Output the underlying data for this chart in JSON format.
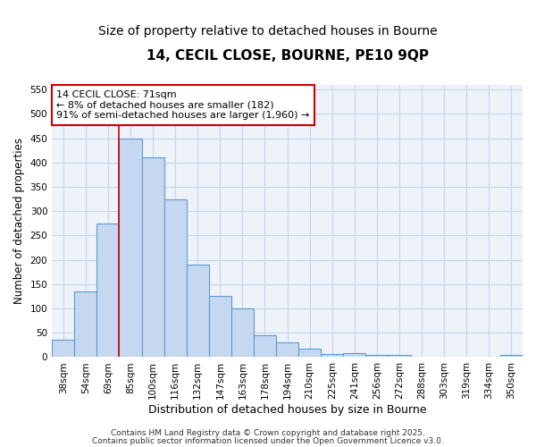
{
  "title": "14, CECIL CLOSE, BOURNE, PE10 9QP",
  "subtitle": "Size of property relative to detached houses in Bourne",
  "xlabel": "Distribution of detached houses by size in Bourne",
  "ylabel": "Number of detached properties",
  "categories": [
    "38sqm",
    "54sqm",
    "69sqm",
    "85sqm",
    "100sqm",
    "116sqm",
    "132sqm",
    "147sqm",
    "163sqm",
    "178sqm",
    "194sqm",
    "210sqm",
    "225sqm",
    "241sqm",
    "256sqm",
    "272sqm",
    "288sqm",
    "303sqm",
    "319sqm",
    "334sqm",
    "350sqm"
  ],
  "values": [
    35,
    135,
    275,
    450,
    410,
    325,
    190,
    125,
    100,
    45,
    30,
    18,
    7,
    8,
    4,
    4,
    0,
    0,
    0,
    0,
    5
  ],
  "bar_color": "#c5d8f0",
  "bar_edge_color": "#5b9bd5",
  "bar_edge_width": 0.8,
  "vline_x_index": 2,
  "vline_color": "#cc0000",
  "annotation_text": "14 CECIL CLOSE: 71sqm\n← 8% of detached houses are smaller (182)\n91% of semi-detached houses are larger (1,960) →",
  "annotation_box_color": "#ffffff",
  "annotation_box_edge_color": "#cc0000",
  "ylim": [
    0,
    560
  ],
  "yticks": [
    0,
    50,
    100,
    150,
    200,
    250,
    300,
    350,
    400,
    450,
    500,
    550
  ],
  "plot_bg_color": "#eef2f9",
  "fig_bg_color": "#ffffff",
  "grid_color": "#c8d4e8",
  "footer_line1": "Contains HM Land Registry data © Crown copyright and database right 2025.",
  "footer_line2": "Contains public sector information licensed under the Open Government Licence v3.0.",
  "title_fontsize": 11,
  "subtitle_fontsize": 10,
  "xlabel_fontsize": 9,
  "ylabel_fontsize": 8.5,
  "tick_fontsize": 7.5,
  "annotation_fontsize": 8,
  "footer_fontsize": 6.5
}
